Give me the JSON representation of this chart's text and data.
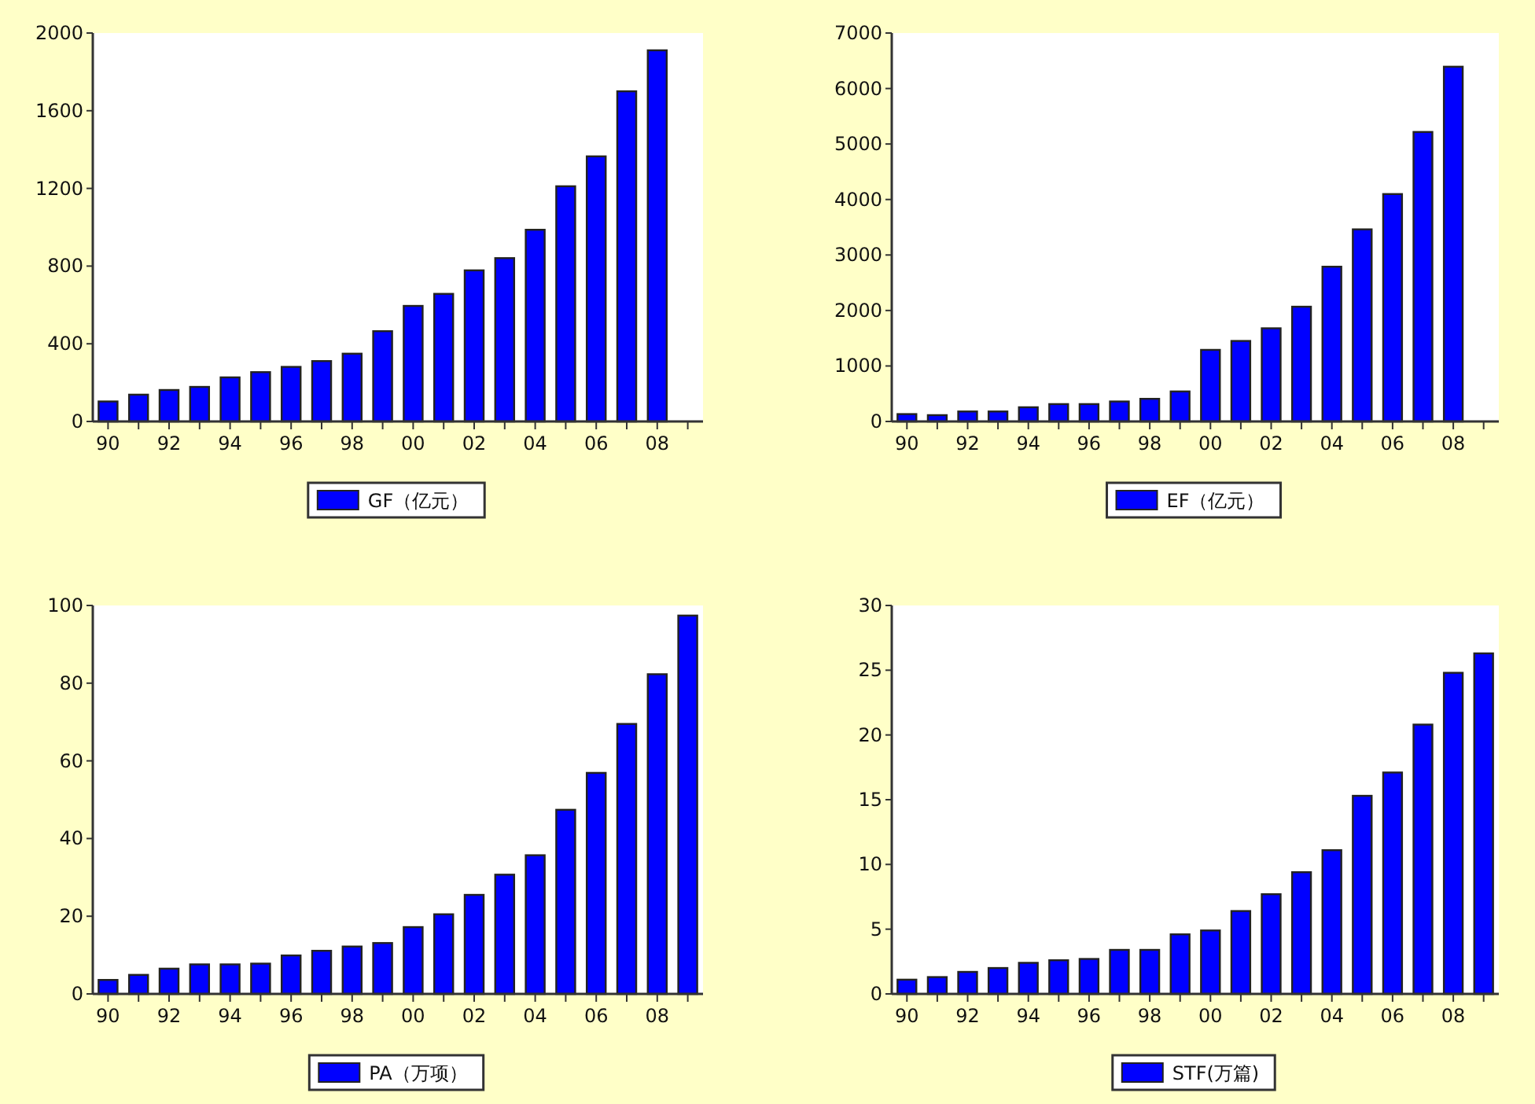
{
  "chart_data": [
    {
      "type": "bar",
      "categories": [
        "90",
        null,
        "92",
        null,
        "94",
        null,
        "96",
        null,
        "98",
        null,
        "00",
        null,
        "02",
        null,
        "04",
        null,
        "06",
        null,
        "08",
        null
      ],
      "series": [
        {
          "name": "GF（亿元）",
          "color": "#0000ff",
          "values": [
            103,
            138,
            162,
            178,
            227,
            254,
            281,
            311,
            349,
            465,
            595,
            657,
            778,
            841,
            987,
            1211,
            1365,
            1700,
            1911,
            null
          ]
        }
      ],
      "ylim": [
        0,
        2000
      ],
      "yticks": [
        0,
        400,
        800,
        1200,
        1600,
        2000
      ],
      "legend": "bottom"
    },
    {
      "type": "bar",
      "categories": [
        "90",
        null,
        "92",
        null,
        "94",
        null,
        "96",
        null,
        "98",
        null,
        "00",
        null,
        "02",
        null,
        "04",
        null,
        "06",
        null,
        "08",
        null
      ],
      "series": [
        {
          "name": "EF（亿元）",
          "color": "#0000ff",
          "values": [
            133,
            114,
            180,
            180,
            256,
            313,
            313,
            360,
            408,
            541,
            1290,
            1451,
            1679,
            2068,
            2789,
            3462,
            4098,
            5217,
            6393,
            null
          ]
        }
      ],
      "ylim": [
        0,
        7000
      ],
      "yticks": [
        0,
        1000,
        2000,
        3000,
        4000,
        5000,
        6000,
        7000
      ],
      "legend": "bottom"
    },
    {
      "type": "bar",
      "categories": [
        "90",
        null,
        "92",
        null,
        "94",
        null,
        "96",
        null,
        "98",
        null,
        "00",
        null,
        "02",
        null,
        "04",
        null,
        "06",
        null,
        "08",
        null
      ],
      "series": [
        {
          "name": "PA（万项）",
          "color": "#0000ff",
          "values": [
            3.6,
            4.9,
            6.5,
            7.6,
            7.6,
            7.8,
            9.9,
            11.1,
            12.2,
            13.1,
            17.2,
            20.5,
            25.5,
            30.7,
            35.7,
            47.4,
            56.9,
            69.5,
            82.3,
            97.4
          ]
        }
      ],
      "ylim": [
        0,
        100
      ],
      "yticks": [
        0,
        20,
        40,
        60,
        80,
        100
      ],
      "legend": "bottom"
    },
    {
      "type": "bar",
      "categories": [
        "90",
        null,
        "92",
        null,
        "94",
        null,
        "96",
        null,
        "98",
        null,
        "00",
        null,
        "02",
        null,
        "04",
        null,
        "06",
        null,
        "08",
        null
      ],
      "series": [
        {
          "name": "STF(万篇)",
          "color": "#0000ff",
          "values": [
            1.1,
            1.3,
            1.7,
            2.0,
            2.4,
            2.6,
            2.7,
            3.4,
            3.4,
            4.6,
            4.9,
            6.4,
            7.7,
            9.4,
            11.1,
            15.3,
            17.1,
            20.8,
            24.8,
            26.3
          ]
        }
      ],
      "ylim": [
        0,
        30
      ],
      "yticks": [
        0,
        5,
        10,
        15,
        20,
        25,
        30
      ],
      "legend": "bottom"
    }
  ]
}
